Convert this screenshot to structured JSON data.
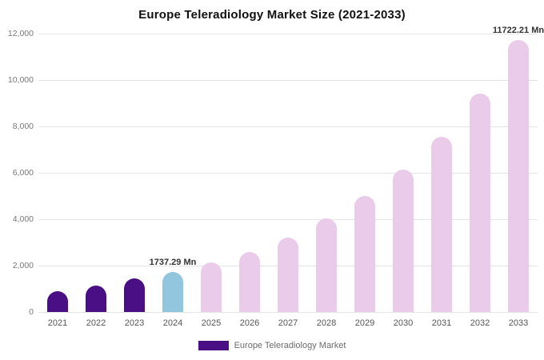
{
  "chart": {
    "title": "Europe Teleradiology Market Size (2021-2033)",
    "legend": {
      "label": "Europe Teleradiology Market",
      "swatch_color": "#4a0e85"
    }
  },
  "chart_data": {
    "type": "bar",
    "title": "Europe Teleradiology Market Size (2021-2033)",
    "categories": [
      "2021",
      "2022",
      "2023",
      "2024",
      "2025",
      "2026",
      "2027",
      "2028",
      "2029",
      "2030",
      "2031",
      "2032",
      "2033"
    ],
    "values": [
      880,
      1150,
      1450,
      1737.29,
      2150,
      2600,
      3200,
      4050,
      5000,
      6150,
      7550,
      9400,
      11722.21
    ],
    "unit": "Mn",
    "xlabel": "",
    "ylabel": "",
    "ylim": [
      0,
      12000
    ],
    "yticks": [
      0,
      2000,
      4000,
      6000,
      8000,
      10000,
      12000
    ],
    "ytick_labels": [
      "0",
      "2,000",
      "4,000",
      "6,000",
      "8,000",
      "10,000",
      "12,000"
    ],
    "bar_colors": [
      "#4a0e85",
      "#4a0e85",
      "#4a0e85",
      "#92c5de",
      "#eacbe9",
      "#eacbe9",
      "#eacbe9",
      "#eacbe9",
      "#eacbe9",
      "#eacbe9",
      "#eacbe9",
      "#eacbe9",
      "#eacbe9"
    ],
    "annotations": [
      {
        "index": 3,
        "text": "1737.29 Mn"
      },
      {
        "index": 12,
        "text": "11722.21 Mn"
      }
    ],
    "legend_entries": [
      "Europe Teleradiology Market"
    ],
    "grid": true,
    "legend_position": "bottom"
  }
}
